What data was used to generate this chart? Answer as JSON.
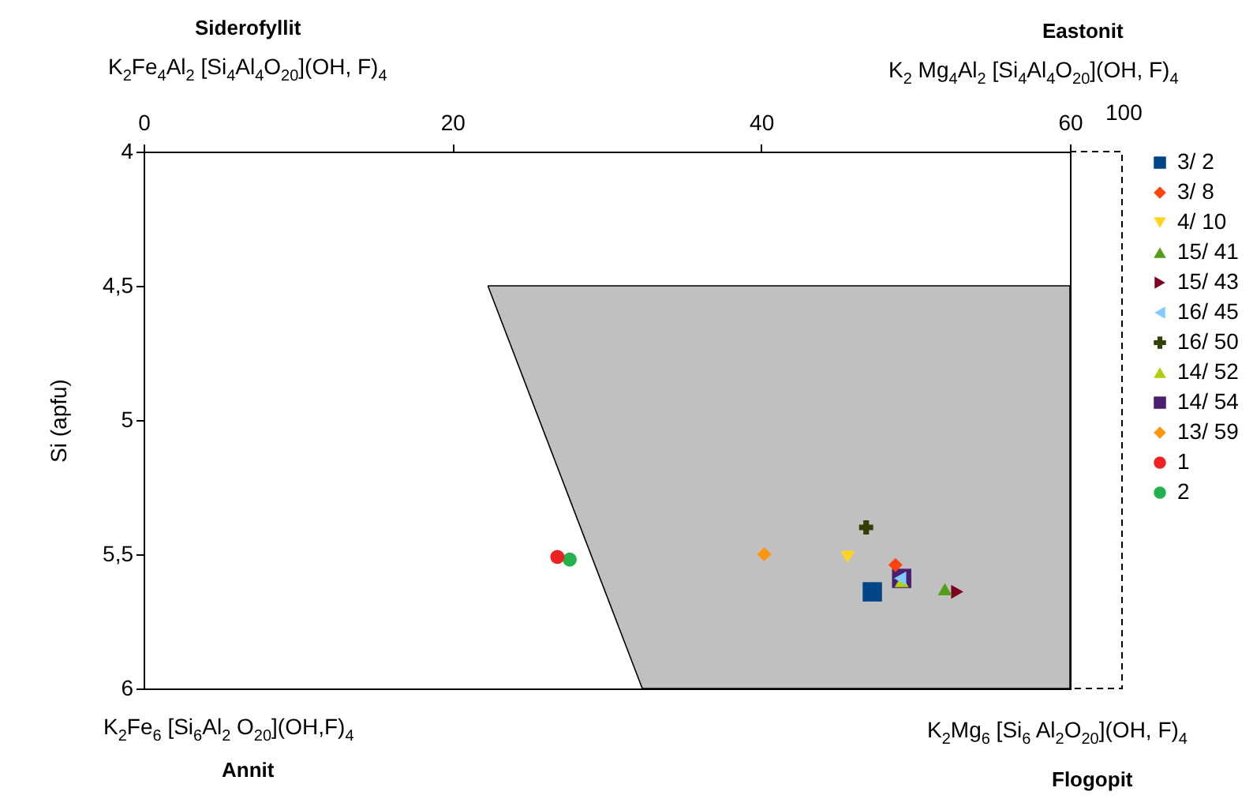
{
  "chart_data": {
    "type": "scatter",
    "ylabel": "Si (apfu)",
    "annotations": [
      "Siderofyllit",
      "K$_{2}$Fe$_{4}$Al$_{2}$ [Si$_{4}$Al$_{4}$O$_{20}$](OH, F)$_{4}$",
      "Eastonit",
      "K$_{2}$ Mg$_{4}$Al$_{2}$ [Si$_{4}$Al$_{4}$O$_{20}$](OH, F)$_{4}$",
      "K$_{2}$Fe$_{6}$ [Si$_{6}$Al$_{2}$ O$_{20}$](OH,F)$_{4}$",
      "Annit",
      "K$_{2}$Mg$_{6}$ [Si$_{6}$ Al$_{2}$O$_{20}$](OH, F)$_{4}$",
      "Flogopit",
      "100"
    ],
    "xlim": [
      0,
      60
    ],
    "xticks": [
      0,
      20,
      40,
      60
    ],
    "ylim": [
      6,
      4
    ],
    "yticks": [
      4,
      {
        "value": 4.5,
        "label": "4,5"
      },
      5,
      {
        "value": 5.5,
        "label": "5,5"
      },
      6
    ],
    "grid": false,
    "legend": "right",
    "series": [
      {
        "type": "area",
        "color": "#c0c0c0",
        "x": [
          22.3,
          60,
          60,
          32.3,
          22.3
        ],
        "values": [
          4.5,
          4.5,
          6,
          6,
          4.5
        ]
      },
      {
        "name": "3/ 2",
        "color": "#004586",
        "marker": "square",
        "x": [
          47.2
        ],
        "values": [
          5.64
        ]
      },
      {
        "name": "3/ 8",
        "color": "#ff420e",
        "marker": "diamond",
        "x": [
          48.7
        ],
        "values": [
          5.54
        ]
      },
      {
        "name": "4/ 10",
        "color": "#ffd320",
        "marker": "triangle-down",
        "x": [
          45.6
        ],
        "values": [
          5.51
        ]
      },
      {
        "name": "15/ 41",
        "color": "#579d1c",
        "marker": "triangle-up",
        "x": [
          51.9
        ],
        "values": [
          5.63
        ]
      },
      {
        "name": "15/ 43",
        "color": "#7e0021",
        "marker": "triangle-right",
        "x": [
          52.7
        ],
        "values": [
          5.64
        ]
      },
      {
        "name": "16/ 45",
        "color": "#83caff",
        "marker": "triangle-left",
        "x": [
          49.0
        ],
        "values": [
          5.59
        ]
      },
      {
        "name": "16/ 50",
        "color": "#314004",
        "marker": "cross",
        "x": [
          46.8
        ],
        "values": [
          5.4
        ]
      },
      {
        "name": "14/ 52",
        "color": "#aecf00",
        "marker": "triangle",
        "x": [
          49.1
        ],
        "values": [
          5.6
        ]
      },
      {
        "name": "14/ 54",
        "color": "#4b1f6f",
        "marker": "square",
        "x": [
          49.1
        ],
        "values": [
          5.59
        ]
      },
      {
        "name": "13/ 59",
        "color": "#ff950e",
        "marker": "diamond",
        "x": [
          40.2
        ],
        "values": [
          5.5
        ]
      },
      {
        "name": "1",
        "color": "#ee2222",
        "marker": "circle",
        "x": [
          26.8
        ],
        "values": [
          5.51
        ]
      },
      {
        "name": "2",
        "color": "#22b14c",
        "marker": "circle",
        "x": [
          27.6
        ],
        "values": [
          5.52
        ]
      }
    ]
  }
}
